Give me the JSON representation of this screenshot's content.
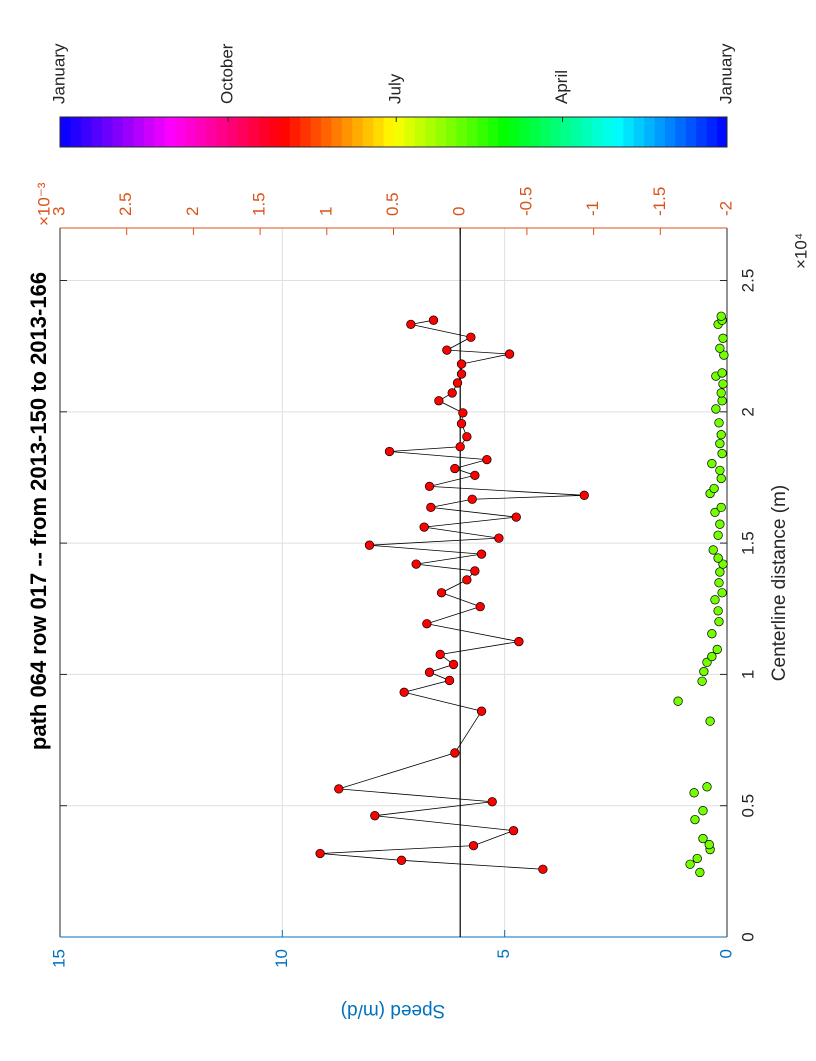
{
  "chart_data": {
    "type": "scatter",
    "title": "path 064 row 017 -- from 2013-150 to 2013-166",
    "xlabel": "Centerline distance (m)",
    "ylabel": "Speed (m/d)",
    "x_multiplier": "×10⁴",
    "y2_multiplier": "×10⁻³",
    "xlim": [
      0,
      27000
    ],
    "xticks": [
      0,
      {
        "value": 5000,
        "label": "0.5"
      },
      {
        "value": 10000,
        "label": "1"
      },
      {
        "value": 15000,
        "label": "1.5"
      },
      {
        "value": 20000,
        "label": "2"
      },
      {
        "value": 25000,
        "label": "2.5"
      }
    ],
    "ylim": [
      0,
      15
    ],
    "yticks": [
      0,
      5,
      10,
      15
    ],
    "y2lim": [
      -0.002,
      0.003
    ],
    "y2ticks": [
      {
        "value": -0.002,
        "label": "-2"
      },
      {
        "value": -0.0015,
        "label": "-1.5"
      },
      {
        "value": -0.001,
        "label": "-1"
      },
      {
        "value": -0.0005,
        "label": "-0.5"
      },
      0,
      {
        "value": 0.0005,
        "label": "0.5"
      },
      {
        "value": 0.001,
        "label": "1"
      },
      {
        "value": 0.0015,
        "label": "1.5"
      },
      {
        "value": 0.002,
        "label": "2"
      },
      {
        "value": 0.0025,
        "label": "2.5"
      },
      {
        "value": 0.003,
        "label": "3"
      }
    ],
    "grid": true,
    "y_axis_color": "#0072bd",
    "y2_axis_color": "#d95319",
    "reference_lines": [
      {
        "axis": "y2",
        "value": 0,
        "color": "#000000"
      }
    ],
    "series": [
      {
        "axis": "y2",
        "color": "#ff0000",
        "line_color": "#000000",
        "x": [
          2580,
          2920,
          3180,
          3480,
          4050,
          4620,
          5150,
          5640,
          7010,
          8600,
          9320,
          9770,
          10080,
          10380,
          10760,
          11250,
          11930,
          12580,
          13110,
          13600,
          13940,
          14200,
          14580,
          14920,
          15190,
          15610,
          15990,
          16360,
          16670,
          16820,
          17160,
          17580,
          17840,
          18180,
          18490,
          18670,
          19050,
          19550,
          19960,
          20420,
          20720,
          21100,
          21440,
          21820,
          22200,
          22350,
          22840,
          23330,
          23490
        ],
        "values": [
          -0.00062,
          0.00044,
          0.00105,
          -0.0001,
          -0.0004,
          0.00064,
          -0.00024,
          0.00091,
          4e-05,
          -0.00016,
          0.00042,
          8e-05,
          0.00023,
          5e-05,
          0.00015,
          -0.00044,
          0.00025,
          -0.00015,
          0.00014,
          -5e-05,
          -0.00011,
          0.00033,
          -0.00016,
          0.00068,
          -0.00029,
          0.00027,
          -0.00042,
          0.00022,
          -9e-05,
          -0.00093,
          0.00023,
          -0.00011,
          4e-05,
          -0.0002,
          0.00053,
          0,
          -5e-05,
          -1e-05,
          -2e-05,
          0.00016,
          6e-05,
          2e-05,
          -1e-05,
          -1e-05,
          -0.00037,
          0.0001,
          -8e-05,
          0.00037,
          0.0002
        ]
      },
      {
        "color": "#73ff00",
        "x": [
          2460,
          2770,
          2990,
          3330,
          3520,
          3750,
          4470,
          4810,
          5490,
          5720,
          8220,
          8980,
          9740,
          10110,
          10460,
          10680,
          10950,
          11550,
          12010,
          12420,
          12840,
          13110,
          13490,
          13900,
          14200,
          14430,
          14740,
          15300,
          15720,
          16170,
          16360,
          16890,
          17080,
          17460,
          17770,
          18030,
          18410,
          18790,
          19130,
          19580,
          20110,
          20420,
          20720,
          21060,
          21360,
          21480,
          22160,
          22420,
          22800,
          23330,
          23490,
          23640
        ],
        "values": [
          0.61,
          0.83,
          0.67,
          0.38,
          0.4,
          0.54,
          0.72,
          0.54,
          0.74,
          0.45,
          0.38,
          1.1,
          0.56,
          0.52,
          0.45,
          0.34,
          0.22,
          0.34,
          0.18,
          0.2,
          0.27,
          0.11,
          0.18,
          0.16,
          0.09,
          0.2,
          0.31,
          0.2,
          0.16,
          0.27,
          0.13,
          0.38,
          0.29,
          0.13,
          0.16,
          0.34,
          0.11,
          0.16,
          0.13,
          0.18,
          0.25,
          0.11,
          0.13,
          0.09,
          0.25,
          0.11,
          0.07,
          0.16,
          0.09,
          0.2,
          0.11,
          0.13
        ]
      }
    ],
    "colorbar": {
      "clim": [
        1,
        366
      ],
      "colormap": "hsv",
      "ticks": [
        {
          "value": 1,
          "label": "January"
        },
        {
          "value": 91,
          "label": "April"
        },
        {
          "value": 182,
          "label": "July"
        },
        {
          "value": 274,
          "label": "October"
        },
        {
          "value": 366,
          "label": "January"
        }
      ]
    }
  }
}
